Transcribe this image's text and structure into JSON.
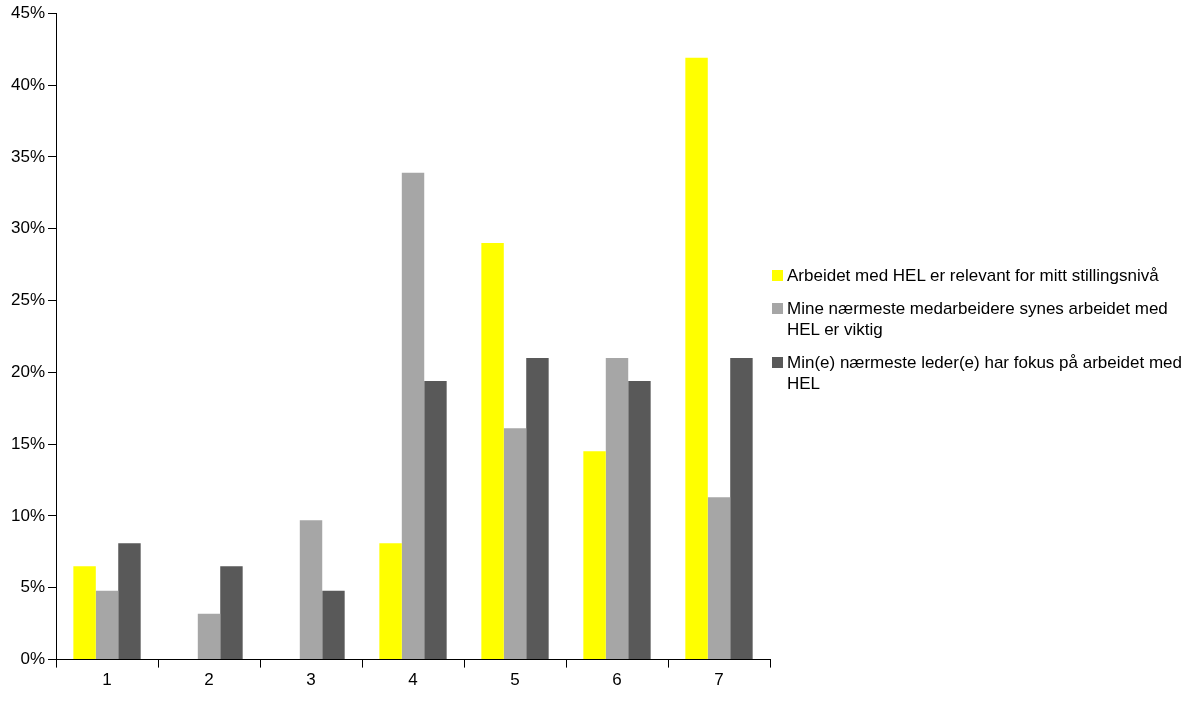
{
  "chart_data": {
    "type": "bar",
    "categories": [
      "1",
      "2",
      "3",
      "4",
      "5",
      "6",
      "7"
    ],
    "series": [
      {
        "name": "Arbeidet med HEL er relevant for mitt stillingsnivå",
        "color": "#ffff00",
        "values": [
          6.5,
          0,
          0,
          8.1,
          29.0,
          14.5,
          41.9
        ]
      },
      {
        "name": "Mine nærmeste medarbeidere synes arbeidet med HEL er viktig",
        "color": "#a6a6a6",
        "values": [
          4.8,
          3.2,
          9.7,
          33.9,
          16.1,
          21.0,
          11.3
        ]
      },
      {
        "name": "Min(e) nærmeste leder(e) har fokus på arbeidet med HEL",
        "color": "#595959",
        "values": [
          8.1,
          6.5,
          4.8,
          19.4,
          21.0,
          19.4,
          21.0
        ]
      }
    ],
    "ylim": [
      0,
      45
    ],
    "yticks": [
      {
        "value": 0,
        "label": "0%"
      },
      {
        "value": 5,
        "label": "5%"
      },
      {
        "value": 10,
        "label": "10%"
      },
      {
        "value": 15,
        "label": "15%"
      },
      {
        "value": 20,
        "label": "20%"
      },
      {
        "value": 25,
        "label": "25%"
      },
      {
        "value": 30,
        "label": "30%"
      },
      {
        "value": 35,
        "label": "35%"
      },
      {
        "value": 40,
        "label": "40%"
      },
      {
        "value": 45,
        "label": "45%"
      }
    ],
    "grid": false,
    "legend": "right"
  }
}
